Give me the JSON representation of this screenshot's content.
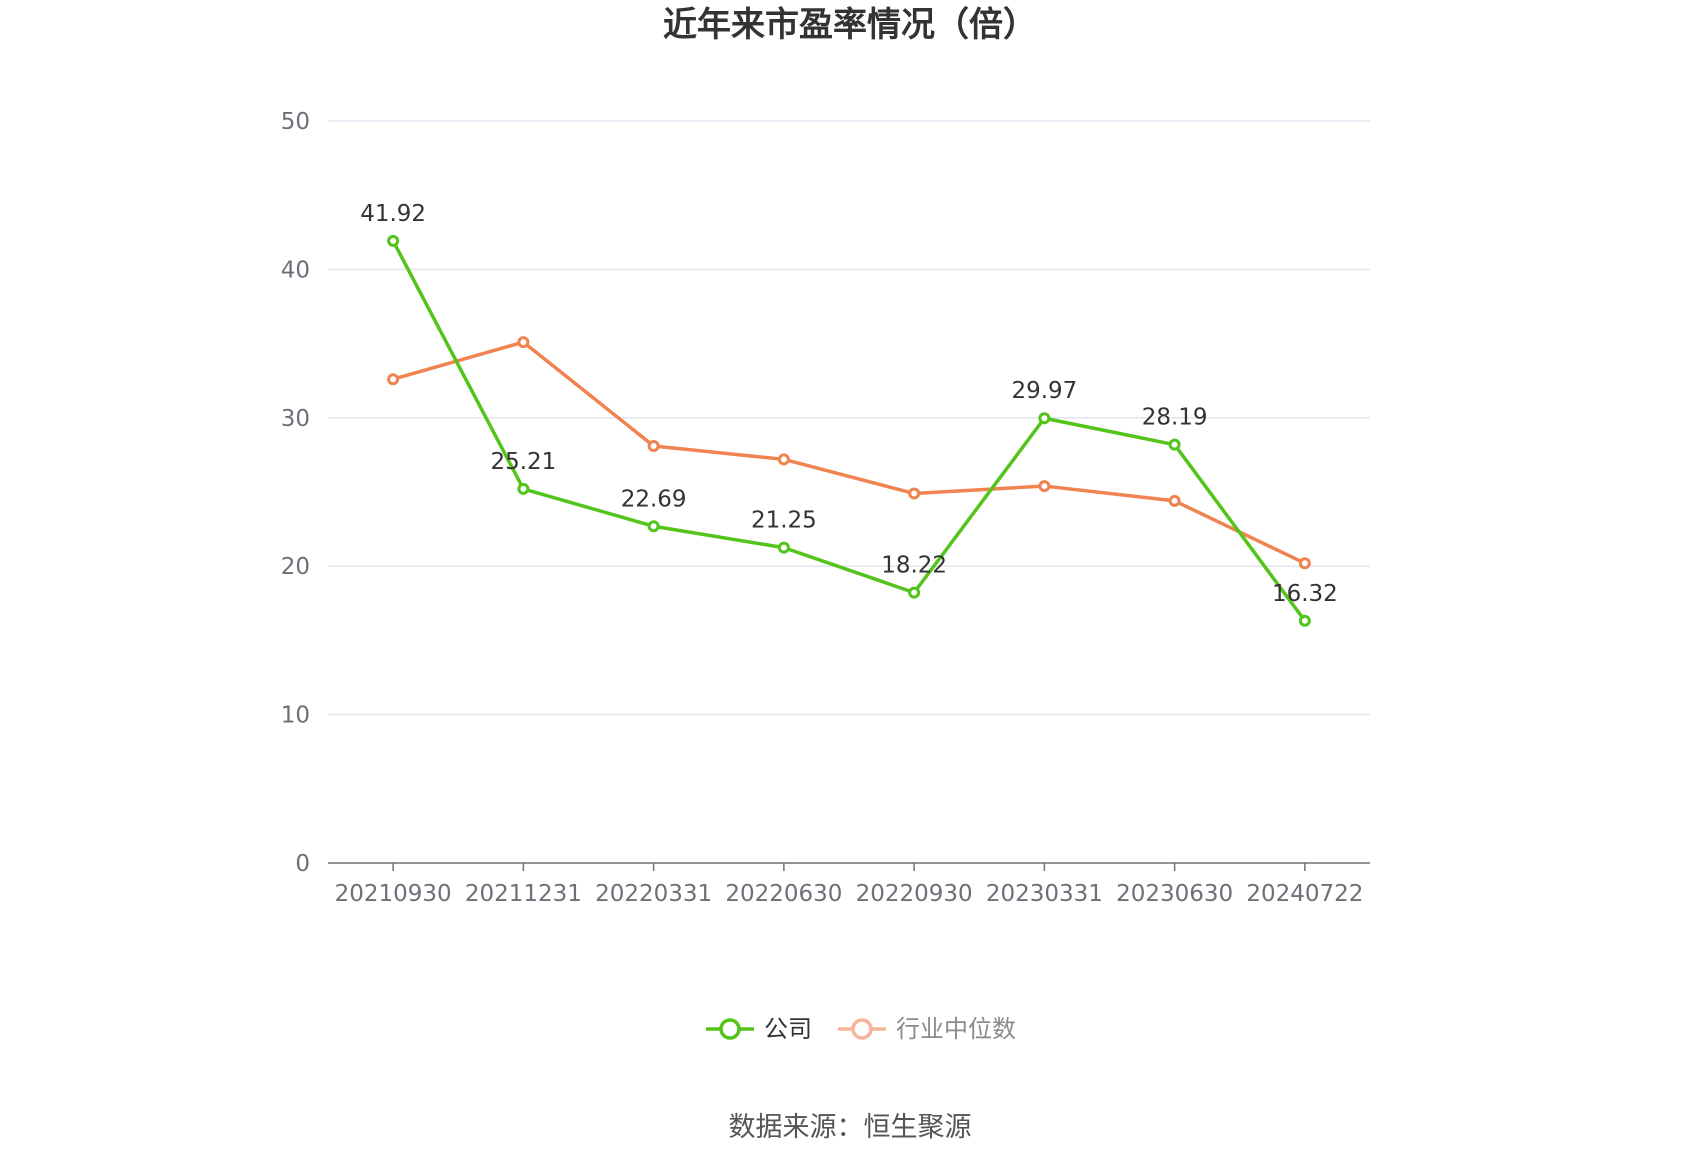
{
  "chart_data": {
    "type": "line",
    "title": "近年来市盈率情况（倍）",
    "categories": [
      "20210930",
      "20211231",
      "20220331",
      "20220630",
      "20220930",
      "20230331",
      "20230630",
      "20240722"
    ],
    "series": [
      {
        "name": "公司",
        "color": "#52c41a",
        "values": [
          41.92,
          25.21,
          22.69,
          21.25,
          18.22,
          29.97,
          28.19,
          16.32
        ],
        "labels": [
          "41.92",
          "25.21",
          "22.69",
          "21.25",
          "18.22",
          "29.97",
          "28.19",
          "16.32"
        ]
      },
      {
        "name": "行业中位数",
        "color": "#f0834f",
        "legend_color": "#f7b49a",
        "values": [
          32.6,
          35.1,
          28.1,
          27.2,
          24.9,
          25.4,
          24.4,
          20.2
        ]
      }
    ],
    "ylim": [
      0,
      50
    ],
    "yticks": [
      "0",
      "10",
      "20",
      "30",
      "40",
      "50"
    ],
    "grid": true,
    "legend_position": "bottom"
  },
  "source_text": "数据来源：恒生聚源"
}
